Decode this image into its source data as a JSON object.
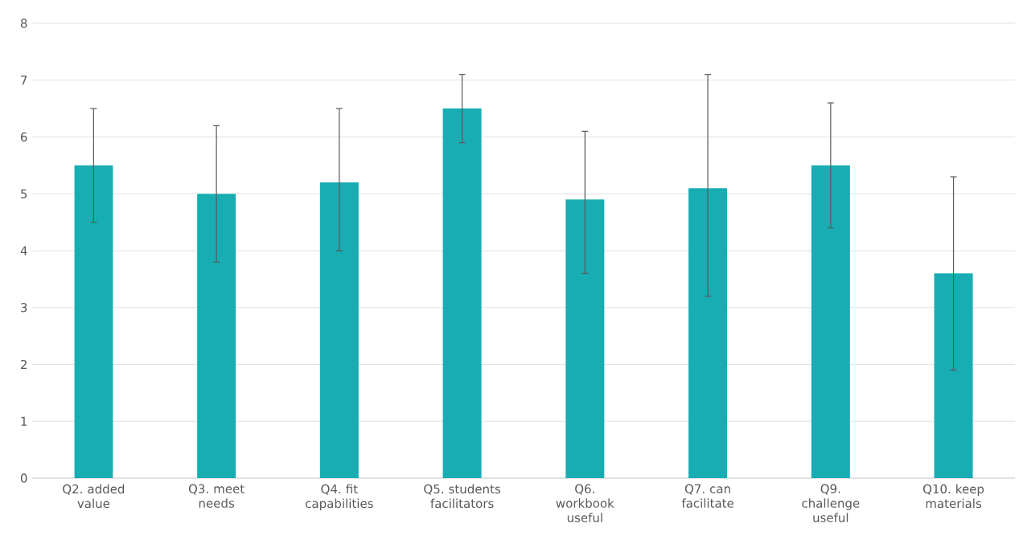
{
  "chart_data": {
    "type": "bar",
    "categories": [
      "Q2. added value",
      "Q3. meet needs",
      "Q4. fit capabilities",
      "Q5. students facilitators",
      "Q6. workbook useful",
      "Q7. can facilitate",
      "Q9. challenge useful",
      "Q10. keep materials"
    ],
    "values": [
      5.5,
      5.0,
      5.2,
      6.5,
      4.9,
      5.1,
      5.5,
      3.6
    ],
    "errors": [
      [
        4.5,
        6.5
      ],
      [
        3.8,
        6.2
      ],
      [
        4.0,
        6.5
      ],
      [
        5.9,
        7.1
      ],
      [
        3.6,
        6.1
      ],
      [
        3.2,
        7.1
      ],
      [
        4.4,
        6.6
      ],
      [
        1.9,
        5.3
      ]
    ],
    "color": "#17adb3",
    "ylim": [
      0,
      8
    ],
    "yticks": [
      0,
      1,
      2,
      3,
      4,
      5,
      6,
      7,
      8
    ],
    "grid": "y"
  }
}
